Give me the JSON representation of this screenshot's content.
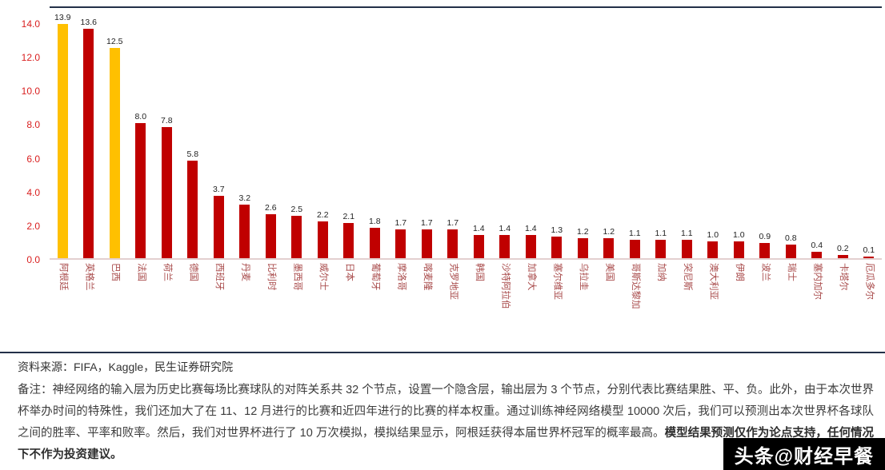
{
  "chart_data": {
    "type": "bar",
    "title": "",
    "xlabel": "",
    "ylabel": "",
    "categories": [
      "阿根廷",
      "英格兰",
      "巴西",
      "法国",
      "荷兰",
      "德国",
      "西班牙",
      "丹麦",
      "比利时",
      "墨西哥",
      "威尔士",
      "日本",
      "葡萄牙",
      "摩洛哥",
      "喀麦隆",
      "克罗地亚",
      "韩国",
      "沙特阿拉伯",
      "加拿大",
      "塞尔维亚",
      "乌拉圭",
      "美国",
      "哥斯达黎加",
      "加纳",
      "突尼斯",
      "澳大利亚",
      "伊朗",
      "波兰",
      "瑞士",
      "塞内加尔",
      "卡塔尔",
      "厄瓜多尔"
    ],
    "values": [
      13.9,
      13.6,
      12.5,
      8.0,
      7.8,
      5.8,
      3.7,
      3.2,
      2.6,
      2.5,
      2.2,
      2.1,
      1.8,
      1.7,
      1.7,
      1.7,
      1.4,
      1.4,
      1.4,
      1.3,
      1.2,
      1.2,
      1.1,
      1.1,
      1.1,
      1.0,
      1.0,
      0.9,
      0.8,
      0.4,
      0.2,
      0.1
    ],
    "highlight_indices": [
      0,
      2
    ],
    "ylim": [
      0,
      14
    ],
    "yticks": [
      0,
      2,
      4,
      6,
      8,
      10,
      12,
      14
    ],
    "grid": "off",
    "legend": "none",
    "colors": {
      "highlight_bar": "#FFC000",
      "bar": "#C00000",
      "ytick_label": "#D91E1E",
      "xtick_label": "#A84A4A",
      "value_label": "#1F1F1F"
    }
  },
  "footer": {
    "source": "资料来源：FIFA，Kaggle，民生证券研究院",
    "note_prefix": "备注：",
    "note_body": "神经网络的输入层为历史比赛每场比赛球队的对阵关系共 32 个节点，设置一个隐含层，输出层为 3 个节点，分别代表比赛结果胜、平、负。此外，由于本次世界杯举办时间的特殊性，我们还加大了在 11、12 月进行的比赛和近四年进行的比赛的样本权重。通过训练神经网络模型 10000 次后，我们可以预测出本次世界杯各球队之间的胜率、平率和败率。然后，我们对世界杯进行了 10 万次模拟，模拟结果显示，阿根廷获得本届世界杯冠军的概率最高。",
    "note_bold": "模型结果预测仅作为论点支持，任何情况下不作为投资建议。"
  },
  "watermark": {
    "text": "头条@财经早餐"
  }
}
